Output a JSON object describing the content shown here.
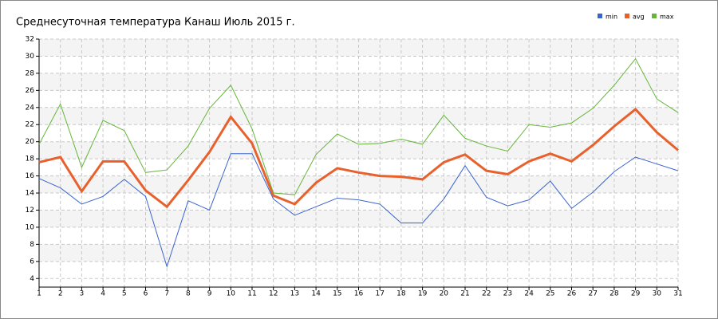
{
  "chart_data": {
    "type": "line",
    "title": "Среднесуточная температура Канаш  Июль 2015 г.",
    "x": [
      1,
      2,
      3,
      4,
      5,
      6,
      7,
      8,
      9,
      10,
      11,
      12,
      13,
      14,
      15,
      16,
      17,
      18,
      19,
      20,
      21,
      22,
      23,
      24,
      25,
      26,
      27,
      28,
      29,
      30,
      31
    ],
    "xlim": [
      1,
      31
    ],
    "xticks": [
      1,
      2,
      3,
      4,
      5,
      6,
      7,
      8,
      9,
      10,
      11,
      12,
      13,
      14,
      15,
      16,
      17,
      18,
      19,
      20,
      21,
      22,
      23,
      24,
      25,
      26,
      27,
      28,
      29,
      30,
      31
    ],
    "ylim": [
      3,
      32
    ],
    "yticks": [
      4,
      6,
      8,
      10,
      12,
      14,
      16,
      18,
      20,
      22,
      24,
      26,
      28,
      30,
      32
    ],
    "grid": true,
    "legend": "top-right",
    "series": [
      {
        "name": "min",
        "color": "#3a64d0",
        "values": [
          15.7,
          14.6,
          12.7,
          13.6,
          15.6,
          13.6,
          5.4,
          13.1,
          12.0,
          18.6,
          18.6,
          13.3,
          11.4,
          12.4,
          13.4,
          13.2,
          12.7,
          10.5,
          10.5,
          13.3,
          17.2,
          13.5,
          12.5,
          13.2,
          15.4,
          12.2,
          14.1,
          16.5,
          18.2,
          17.4,
          16.6
        ]
      },
      {
        "name": "avg",
        "color": "#e8602c",
        "values": [
          17.6,
          18.2,
          14.2,
          17.7,
          17.7,
          14.3,
          12.4,
          15.5,
          18.8,
          22.9,
          19.8,
          13.7,
          12.7,
          15.2,
          16.9,
          16.4,
          16.0,
          15.9,
          15.6,
          17.6,
          18.5,
          16.6,
          16.2,
          17.7,
          18.6,
          17.7,
          19.6,
          21.8,
          23.8,
          21.1,
          19.0
        ]
      },
      {
        "name": "max",
        "color": "#66b53a",
        "values": [
          19.7,
          24.4,
          17.0,
          22.5,
          21.3,
          16.4,
          16.7,
          19.5,
          23.9,
          26.6,
          21.5,
          14.0,
          13.8,
          18.5,
          20.9,
          19.7,
          19.8,
          20.3,
          19.7,
          23.1,
          20.4,
          19.5,
          18.9,
          22.0,
          21.7,
          22.2,
          23.9,
          26.6,
          29.7,
          25.0,
          23.4
        ]
      }
    ]
  }
}
